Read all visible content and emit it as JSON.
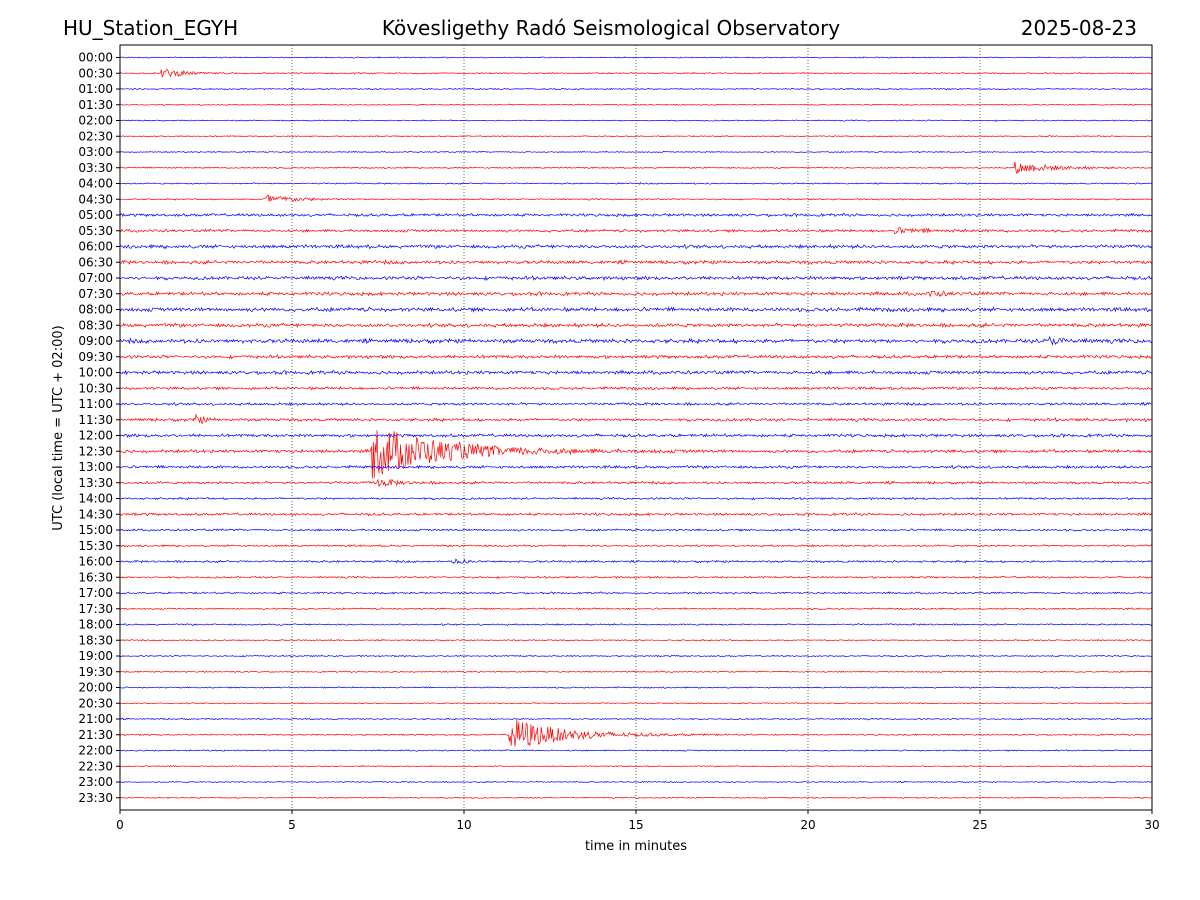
{
  "header": {
    "station": "HU_Station_EGYH",
    "title": "Kövesligethy Radó Seismological Observatory",
    "date": "2025-08-23"
  },
  "colors": {
    "even_row": "#0000ff",
    "odd_row": "#ff0000",
    "frame": "#000000",
    "grid": "#000000"
  },
  "chart_data": {
    "type": "line",
    "description_kind": "helicorder",
    "xlabel": "time in minutes",
    "ylabel": "UTC (local time = UTC + 02:00)",
    "xlim": [
      0,
      30
    ],
    "xticks": [
      0,
      5,
      10,
      15,
      20,
      25,
      30
    ],
    "grid": "vertical dotted",
    "rows": [
      "00:00",
      "00:30",
      "01:00",
      "01:30",
      "02:00",
      "02:30",
      "03:00",
      "03:30",
      "04:00",
      "04:30",
      "05:00",
      "05:30",
      "06:00",
      "06:30",
      "07:00",
      "07:30",
      "08:00",
      "08:30",
      "09:00",
      "09:30",
      "10:00",
      "10:30",
      "11:00",
      "11:30",
      "12:00",
      "12:30",
      "13:00",
      "13:30",
      "14:00",
      "14:30",
      "15:00",
      "15:30",
      "16:00",
      "16:30",
      "17:00",
      "17:30",
      "18:00",
      "18:30",
      "19:00",
      "19:30",
      "20:00",
      "20:30",
      "21:00",
      "21:30",
      "22:00",
      "22:30",
      "23:00",
      "23:30"
    ],
    "noise_level": [
      0.5,
      0.6,
      0.6,
      0.5,
      0.5,
      0.5,
      0.5,
      0.6,
      0.6,
      0.6,
      1.2,
      1.2,
      1.5,
      1.5,
      1.5,
      1.5,
      1.7,
      1.6,
      1.8,
      1.4,
      1.5,
      1.2,
      1.1,
      1.3,
      1.3,
      1.4,
      1.2,
      1.1,
      0.9,
      1.1,
      0.9,
      0.8,
      0.9,
      0.8,
      0.8,
      0.7,
      0.7,
      0.6,
      0.6,
      0.6,
      0.6,
      0.5,
      0.6,
      0.6,
      0.6,
      0.5,
      0.5,
      0.5
    ],
    "events": [
      {
        "row": "00:30",
        "start_min": 1.2,
        "amplitude": 5,
        "duration_min": 1.8
      },
      {
        "row": "03:30",
        "start_min": 26.0,
        "amplitude": 6,
        "duration_min": 3.0
      },
      {
        "row": "04:30",
        "start_min": 4.2,
        "amplitude": 5,
        "duration_min": 2.5
      },
      {
        "row": "05:30",
        "start_min": 22.5,
        "amplitude": 2.5,
        "duration_min": 2.5
      },
      {
        "row": "07:30",
        "start_min": 23.5,
        "amplitude": 3.5,
        "duration_min": 1.0
      },
      {
        "row": "09:00",
        "start_min": 27.0,
        "amplitude": 4,
        "duration_min": 1.2
      },
      {
        "row": "11:30",
        "start_min": 2.2,
        "amplitude": 6,
        "duration_min": 0.6
      },
      {
        "row": "12:30",
        "start_min": 7.3,
        "amplitude": 28,
        "duration_min": 6.0
      },
      {
        "row": "13:30",
        "start_min": 7.5,
        "amplitude": 4,
        "duration_min": 1.5
      },
      {
        "row": "16:00",
        "start_min": 9.7,
        "amplitude": 3.5,
        "duration_min": 0.8
      },
      {
        "row": "21:30",
        "start_min": 11.3,
        "amplitude": 18,
        "duration_min": 4.5
      }
    ]
  }
}
